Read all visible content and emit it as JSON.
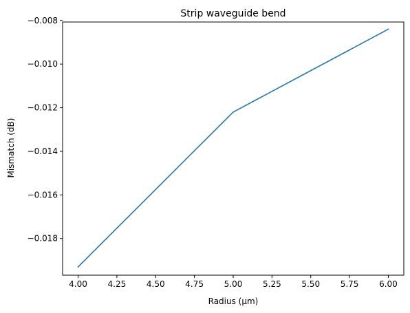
{
  "chart_data": {
    "type": "line",
    "title": "Strip waveguide bend",
    "xlabel": "Radius (µm)",
    "ylabel": "Mismatch (dB)",
    "xlim": [
      3.9,
      6.1
    ],
    "ylim": [
      -0.01968,
      -0.00807
    ],
    "grid": false,
    "x_ticks": [
      4.0,
      4.25,
      4.5,
      4.75,
      5.0,
      5.25,
      5.5,
      5.75,
      6.0
    ],
    "x_tick_labels": [
      "4.00",
      "4.25",
      "4.50",
      "4.75",
      "5.00",
      "5.25",
      "5.50",
      "5.75",
      "6.00"
    ],
    "y_ticks": [
      -0.018,
      -0.016,
      -0.014,
      -0.012,
      -0.01,
      -0.008
    ],
    "y_tick_labels": [
      "−0.018",
      "−0.016",
      "−0.014",
      "−0.012",
      "−0.010",
      "−0.008"
    ],
    "series": [
      {
        "color": "#1f77b4",
        "x": [
          4.0,
          5.0,
          6.0
        ],
        "y": [
          -0.0193,
          -0.0122,
          -0.0084
        ]
      }
    ]
  }
}
